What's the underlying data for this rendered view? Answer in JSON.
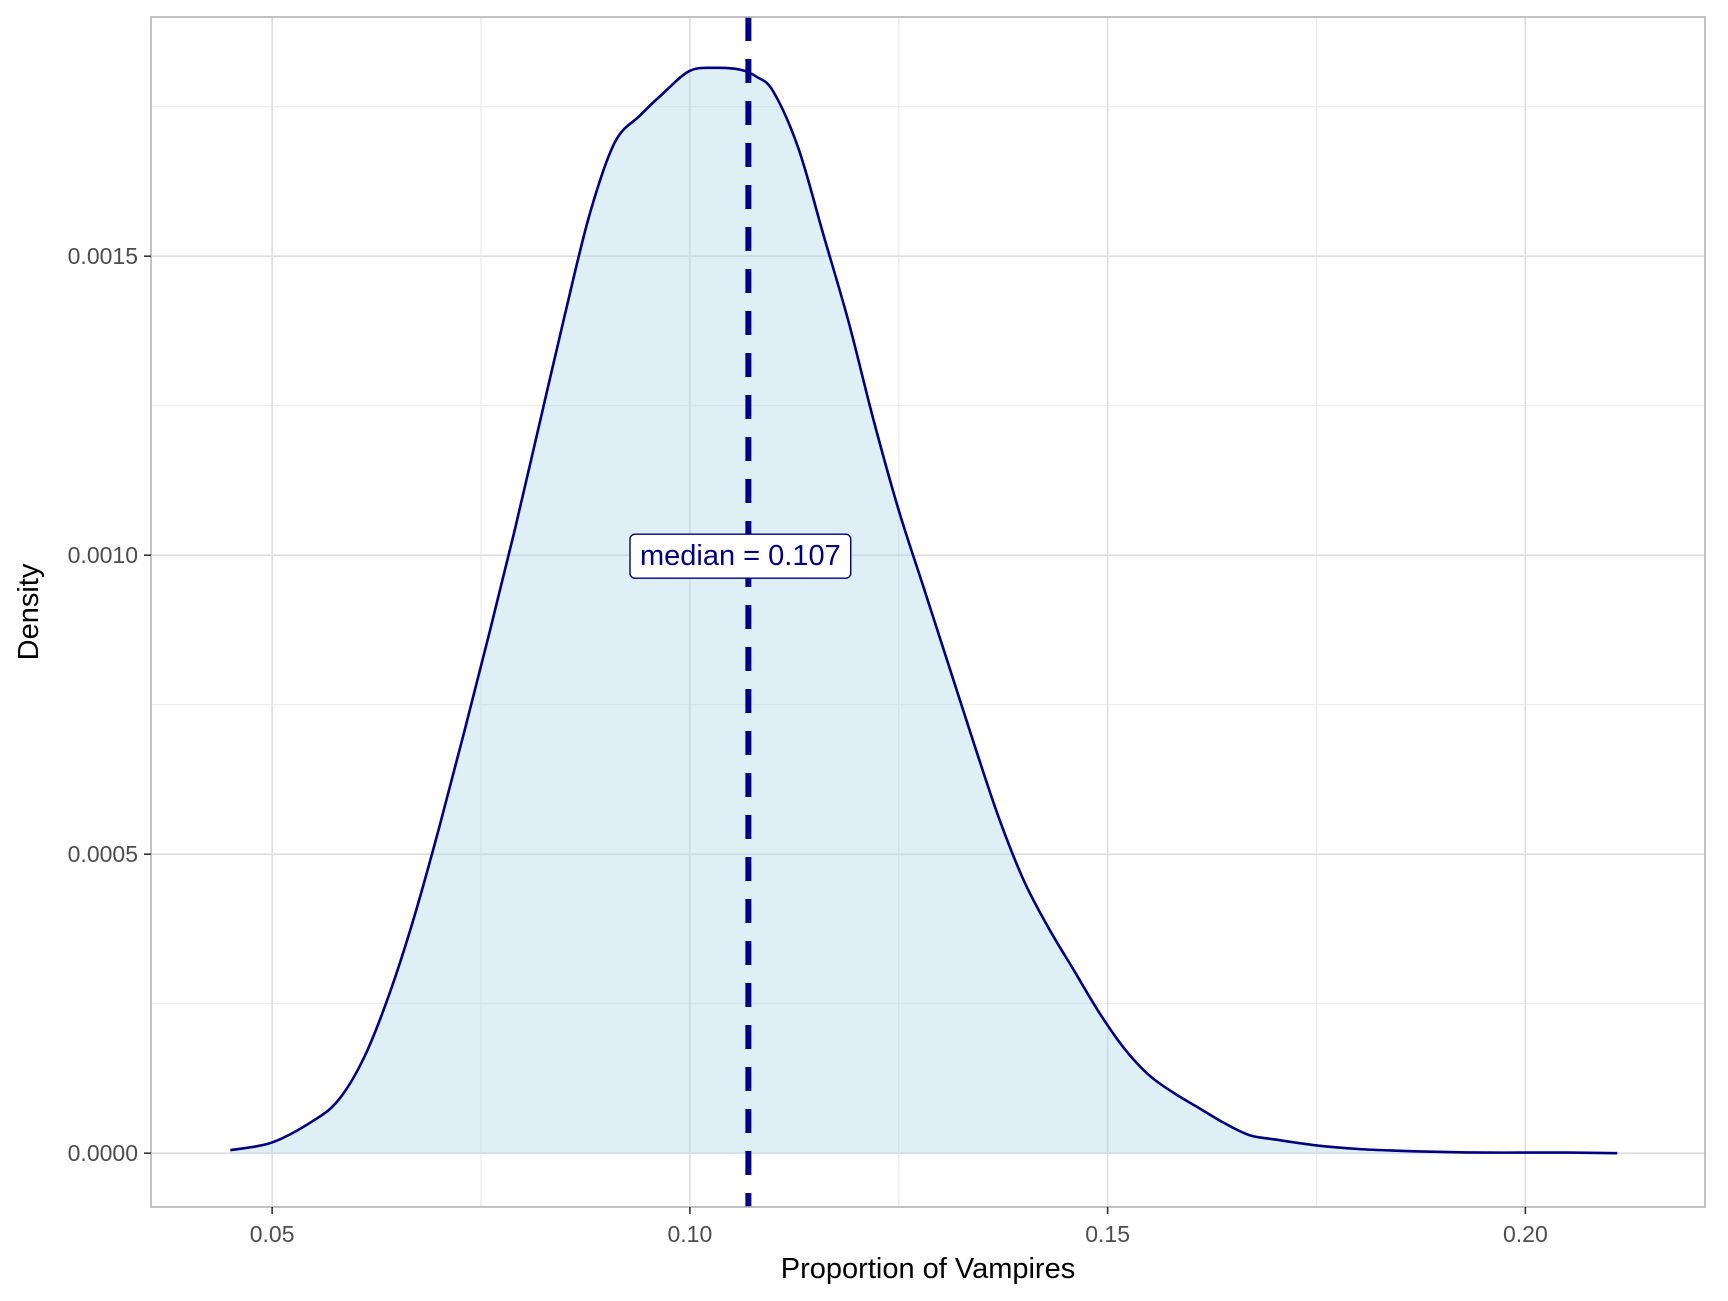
{
  "chart_data": {
    "type": "area",
    "title": "",
    "xlabel": "Proportion of Vampires",
    "ylabel": "Density",
    "xlim": [
      0.0355,
      0.2215
    ],
    "ylim": [
      -9e-05,
      0.0019
    ],
    "x_ticks": [
      0.05,
      0.1,
      0.15,
      0.2
    ],
    "x_tick_labels": [
      "0.05",
      "0.10",
      "0.15",
      "0.20"
    ],
    "x_minor_ticks": [
      0.075,
      0.125,
      0.175
    ],
    "y_ticks": [
      0.0,
      0.0005,
      0.001,
      0.0015
    ],
    "y_tick_labels": [
      "0.0000",
      "0.0005",
      "0.0010",
      "0.0015"
    ],
    "y_minor_ticks": [
      0.00025,
      0.00075,
      0.00125,
      0.00175
    ],
    "grid": true,
    "series": [
      {
        "x": [
          0.045,
          0.05,
          0.055,
          0.058,
          0.061,
          0.064,
          0.067,
          0.07,
          0.073,
          0.076,
          0.079,
          0.082,
          0.085,
          0.088,
          0.091,
          0.094,
          0.097,
          0.1,
          0.103,
          0.106,
          0.108,
          0.11,
          0.113,
          0.116,
          0.119,
          0.122,
          0.125,
          0.128,
          0.131,
          0.134,
          0.137,
          0.14,
          0.143,
          0.146,
          0.149,
          0.152,
          0.155,
          0.158,
          0.161,
          0.164,
          0.167,
          0.17,
          0.175,
          0.18,
          0.185,
          0.19,
          0.195,
          0.2,
          0.205,
          0.211
        ],
        "y": [
          5e-06,
          1.8e-05,
          5.5e-05,
          9e-05,
          0.00016,
          0.000265,
          0.000395,
          0.000545,
          0.000705,
          0.00087,
          0.00104,
          0.00122,
          0.0014,
          0.00157,
          0.00169,
          0.001735,
          0.001775,
          0.00181,
          0.001815,
          0.001812,
          0.0018,
          0.001775,
          0.00168,
          0.001535,
          0.00139,
          0.001225,
          0.001075,
          0.000945,
          0.000815,
          0.000685,
          0.00056,
          0.000455,
          0.000375,
          0.000305,
          0.000235,
          0.000175,
          0.00013,
          0.0001,
          7.5e-05,
          5e-05,
          3e-05,
          2.3e-05,
          1.3e-05,
          7e-06,
          4e-06,
          2e-06,
          1e-06,
          1e-06,
          1e-06,
          0.0
        ]
      }
    ],
    "median": 0.107,
    "median_label": "median = 0.107",
    "colors": {
      "fill": "#add8e6",
      "line": "#000080",
      "grid": "#dedede",
      "panel_border": "#b3b3b3"
    }
  }
}
